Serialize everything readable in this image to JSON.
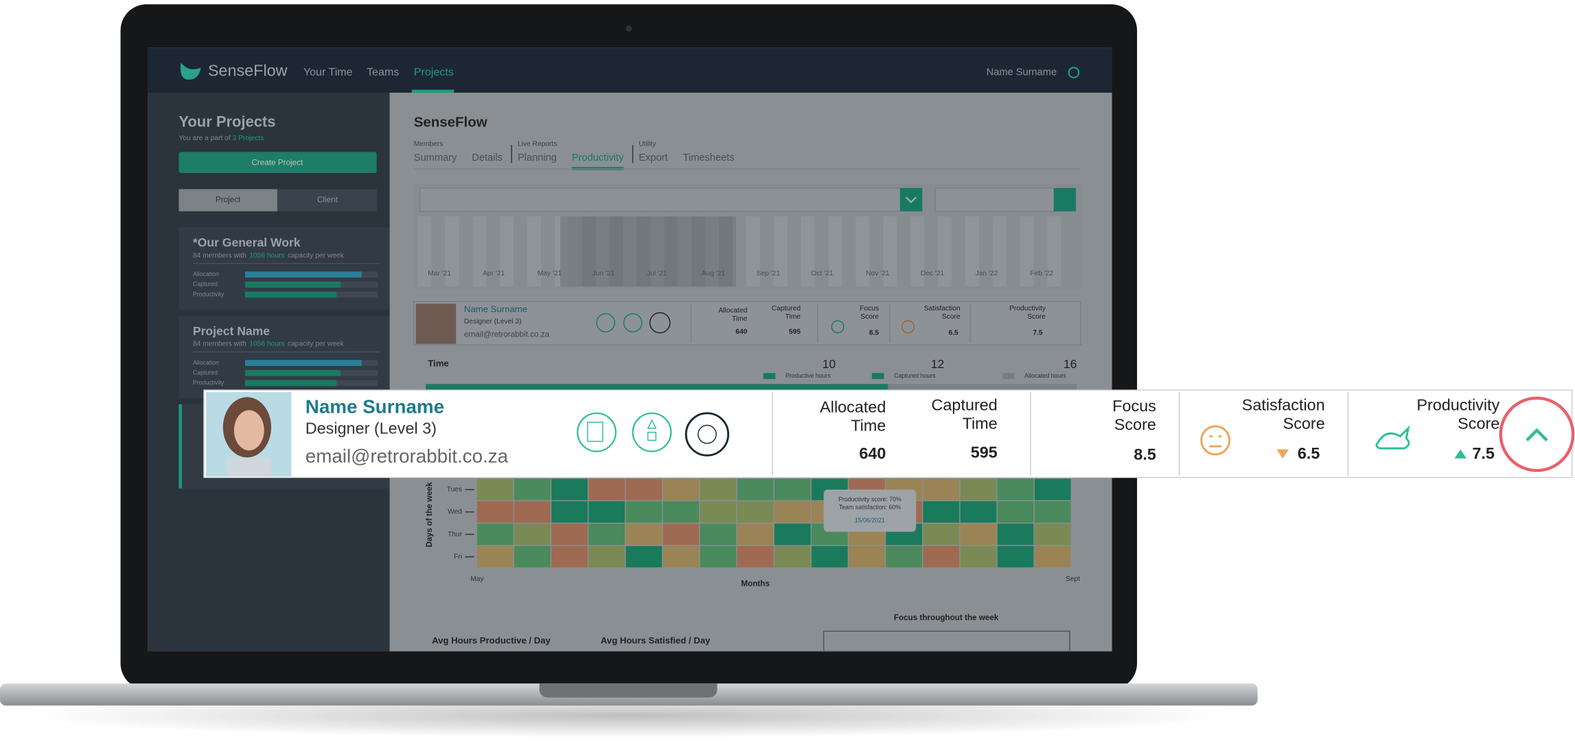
{
  "nav": {
    "logo": "SenseFlow",
    "links": [
      "Your Time",
      "Teams",
      "Projects"
    ],
    "user": "Name Surname"
  },
  "sidebar": {
    "title": "Your Projects",
    "subtitle": "You are a part of",
    "subtitle_link": "3 Projects",
    "create_button": "Create Project",
    "toggle": [
      "Project",
      "Client"
    ],
    "projects": [
      {
        "name": "*Our General Work",
        "members": "84 members with",
        "hours": "1056 hours",
        "capacity": "capacity per week",
        "metrics": [
          "Allocation",
          "Captured",
          "Productivity"
        ]
      },
      {
        "name": "Project Name",
        "members": "84 members with",
        "hours": "1056 hours",
        "capacity": "capacity per week",
        "metrics": [
          "Allocation",
          "Captured",
          "Productivity"
        ]
      }
    ]
  },
  "main": {
    "title": "SenseFlow",
    "tab_groups": [
      {
        "group": "Members",
        "tabs": [
          "Summary",
          "Details"
        ]
      },
      {
        "group": "Live Reports",
        "tabs": [
          "Planning",
          "Productivity"
        ]
      },
      {
        "group": "Utility",
        "tabs": [
          "Export",
          "Timesheets"
        ]
      }
    ],
    "months": [
      "Mar '21",
      "Apr '21",
      "May '21",
      "Jun '21",
      "Jul '21",
      "Aug '21",
      "Sep '21",
      "Oct '21",
      "Nov '21",
      "Dec '21",
      "Jan '22",
      "Feb '22"
    ],
    "member": {
      "name": "Name Surname",
      "role": "Designer (Level 3)",
      "email": "email@retrorabbit.co.za",
      "allocated_label": [
        "Allocated",
        "Time"
      ],
      "allocated": 640,
      "captured_label": [
        "Captured",
        "Time"
      ],
      "captured": 595,
      "focus_label": [
        "Focus",
        "Score"
      ],
      "focus": 8.5,
      "satisfaction_label": [
        "Satisfaction",
        "Score"
      ],
      "satisfaction": 6.5,
      "productivity_label": [
        "Productivity",
        "Score"
      ],
      "productivity": 7.5
    },
    "time": {
      "title": "Time",
      "values": [
        10,
        12,
        16
      ],
      "legend": [
        "Productive hours",
        "Captured hours",
        "Allocated hours"
      ]
    },
    "heatmap": {
      "y_label": "Days of the week",
      "days": [
        "Tues",
        "Wed",
        "Thur",
        "Fri"
      ],
      "x_label": "Months",
      "x_start": "May",
      "x_end": "Sept",
      "tooltip": [
        "Productivity score: 70%",
        "Team satisfaction: 60%",
        "15/06/2021"
      ]
    },
    "bottom": [
      "Avg Hours Productive / Day",
      "Avg Hours Satisfied / Day",
      "Focus throughout the week"
    ]
  },
  "callout": {
    "name": "Name Surname",
    "role": "Designer (Level 3)",
    "email": "email@retrorabbit.co.za",
    "allocated_label": [
      "Allocated",
      "Time"
    ],
    "allocated": 640,
    "captured_label": [
      "Captured",
      "Time"
    ],
    "captured": 595,
    "focus_label": [
      "Focus",
      "Score"
    ],
    "focus": 8.5,
    "satisfaction_label": [
      "Satisfaction",
      "Score"
    ],
    "satisfaction": 6.5,
    "productivity_label": [
      "Productivity",
      "Score"
    ],
    "productivity": 7.5
  }
}
